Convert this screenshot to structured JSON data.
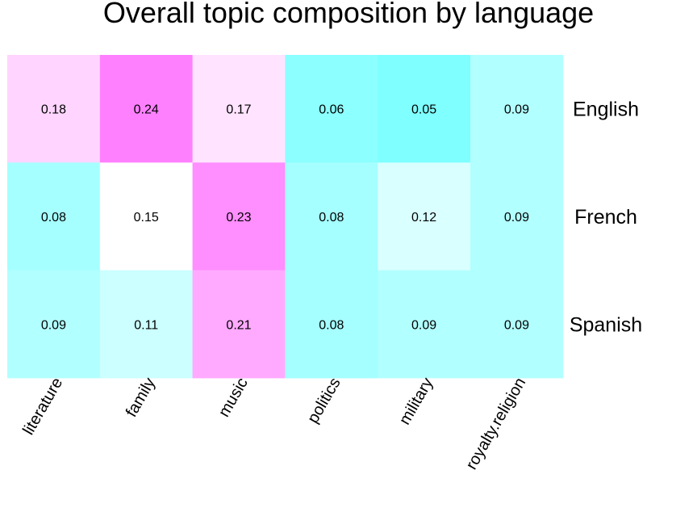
{
  "chart_data": {
    "type": "heatmap",
    "title": "Overall topic composition by language",
    "columns": [
      "literature",
      "family",
      "music",
      "politics",
      "military",
      "royalty.religion"
    ],
    "rows": [
      "English",
      "French",
      "Spanish"
    ],
    "values": [
      [
        0.18,
        0.24,
        0.17,
        0.06,
        0.05,
        0.09
      ],
      [
        0.08,
        0.15,
        0.23,
        0.08,
        0.12,
        0.09
      ],
      [
        0.09,
        0.11,
        0.21,
        0.08,
        0.09,
        0.09
      ]
    ],
    "cell_labels": [
      [
        "0.18",
        "0.24",
        "0.17",
        "0.06",
        "0.05",
        "0.09"
      ],
      [
        "0.08",
        "0.15",
        "0.23",
        "0.08",
        "0.12",
        "0.09"
      ],
      [
        "0.09",
        "0.11",
        "0.21",
        "0.08",
        "0.09",
        "0.09"
      ]
    ],
    "color_scale": {
      "low": "#7fffff",
      "mid": "#ffffff",
      "high": "#ff80ff",
      "low_value": 0.05,
      "mid_value": 0.15,
      "high_value": 0.24
    },
    "legend": "none",
    "grid": false
  }
}
